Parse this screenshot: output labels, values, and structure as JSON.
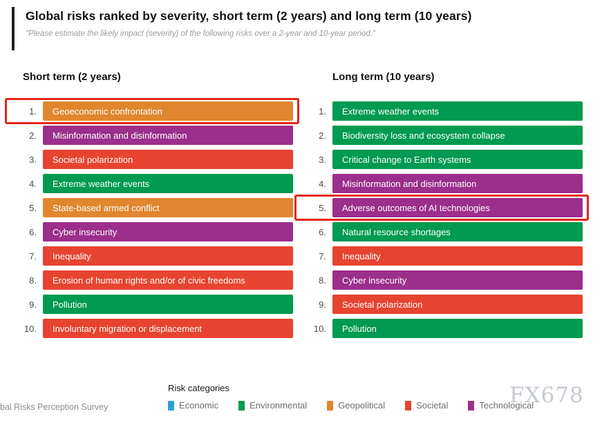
{
  "header": {
    "title": "Global risks ranked by severity, short term (2 years) and long term (10 years)",
    "subtitle": "\"Please estimate the likely impact (severity) of the following risks over a 2-year and 10-year period.\""
  },
  "colors": {
    "economic": "#2ba0db",
    "environmental": "#009a50",
    "geopolitical": "#e0862f",
    "societal": "#e64430",
    "technological": "#9c2e8c",
    "highlight": "#e5251b"
  },
  "chart_data": {
    "type": "table",
    "title": "Global risks ranked by severity, short term (2 years) and long term (10 years)",
    "lists": [
      {
        "title": "Short term (2 years)",
        "items": [
          {
            "rank": "1.",
            "label": "Geoeconomic confrontation",
            "category": "geopolitical",
            "highlighted": true
          },
          {
            "rank": "2.",
            "label": "Misinformation and disinformation",
            "category": "technological",
            "highlighted": false
          },
          {
            "rank": "3.",
            "label": "Societal polarization",
            "category": "societal",
            "highlighted": false
          },
          {
            "rank": "4.",
            "label": "Extreme weather events",
            "category": "environmental",
            "highlighted": false
          },
          {
            "rank": "5.",
            "label": "State-based armed conflict",
            "category": "geopolitical",
            "highlighted": false
          },
          {
            "rank": "6.",
            "label": "Cyber insecurity",
            "category": "technological",
            "highlighted": false
          },
          {
            "rank": "7.",
            "label": "Inequality",
            "category": "societal",
            "highlighted": false
          },
          {
            "rank": "8.",
            "label": "Erosion of human rights and/or of civic freedoms",
            "category": "societal",
            "highlighted": false
          },
          {
            "rank": "9.",
            "label": "Pollution",
            "category": "environmental",
            "highlighted": false
          },
          {
            "rank": "10.",
            "label": "Involuntary migration or displacement",
            "category": "societal",
            "highlighted": false
          }
        ]
      },
      {
        "title": "Long term (10 years)",
        "items": [
          {
            "rank": "1.",
            "label": "Extreme weather events",
            "category": "environmental",
            "highlighted": false
          },
          {
            "rank": "2.",
            "label": "Biodiversity loss and ecosystem collapse",
            "category": "environmental",
            "highlighted": false
          },
          {
            "rank": "3.",
            "label": "Critical change to Earth systems",
            "category": "environmental",
            "highlighted": false
          },
          {
            "rank": "4.",
            "label": "Misinformation and disinformation",
            "category": "technological",
            "highlighted": false
          },
          {
            "rank": "5.",
            "label": "Adverse outcomes of AI technologies",
            "category": "technological",
            "highlighted": true
          },
          {
            "rank": "6.",
            "label": "Natural resource shortages",
            "category": "environmental",
            "highlighted": false
          },
          {
            "rank": "7.",
            "label": "Inequality",
            "category": "societal",
            "highlighted": false
          },
          {
            "rank": "8.",
            "label": "Cyber insecurity",
            "category": "technological",
            "highlighted": false
          },
          {
            "rank": "9.",
            "label": "Societal polarization",
            "category": "societal",
            "highlighted": false
          },
          {
            "rank": "10.",
            "label": "Pollution",
            "category": "environmental",
            "highlighted": false
          }
        ]
      }
    ],
    "legend": {
      "title": "Risk categories",
      "items": [
        {
          "label": "Economic",
          "category": "economic"
        },
        {
          "label": "Environmental",
          "category": "environmental"
        },
        {
          "label": "Geopolitical",
          "category": "geopolitical"
        },
        {
          "label": "Societal",
          "category": "societal"
        },
        {
          "label": "Technological",
          "category": "technological"
        }
      ]
    }
  },
  "footer": {
    "source": "bal Risks Perception Survey",
    "watermark": "FX678"
  }
}
